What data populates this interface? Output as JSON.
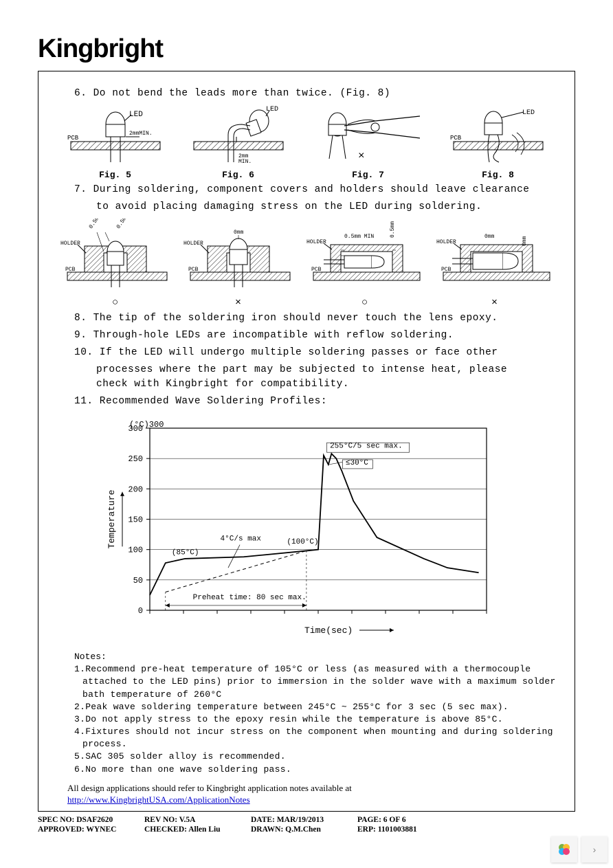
{
  "brand": "Kingbright",
  "items": {
    "i6": "6.  Do  not  bend  the  leads  more  than  twice.  (Fig.  8)",
    "i7": "7.  During  soldering,  component  covers  and  holders  should  leave  clearance",
    "i7b": "to  avoid  placing  damaging  stress  on  the  LED  during  soldering.",
    "i8": "8.  The  tip  of  the  soldering  iron  should  never  touch  the  lens  epoxy.",
    "i9": "9.  Through-hole  LEDs  are  incompatible  with  reflow  soldering.",
    "i10": "10.  If  the  LED  will  undergo  multiple  soldering  passes  or  face  other",
    "i10b": "processes  where  the  part  may  be  subjected  to  intense  heat,  please",
    "i10c": "check  with  Kingbright  for  compatibility.",
    "i11": "11.  Recommended  Wave  Soldering  Profiles:"
  },
  "figrow1": {
    "labels": [
      "Fig.  5",
      "Fig.  6",
      "Fig.  7",
      "Fig.  8"
    ],
    "captions": {
      "led": "LED",
      "pcb": "PCB",
      "min2a": "2mmMIN.",
      "min2b": "2mm",
      "minb2": "MIN."
    }
  },
  "figrow2": {
    "labels": [
      "HOLDER",
      "PCB"
    ],
    "dims": [
      "0.5mm MIN",
      "0mm",
      "0.5mm MIN",
      "0mm"
    ],
    "dimsv": [
      "0.5mm MIN",
      "0.5mm MIN",
      "0mm"
    ],
    "marks": [
      "○",
      "×",
      "○",
      "×"
    ]
  },
  "chart": {
    "title_y": "Temperature",
    "title_x": "Time(sec)",
    "yunit": "(°C)",
    "y_ticks": [
      0,
      50,
      100,
      150,
      200,
      250,
      300
    ],
    "ylim": [
      0,
      300
    ],
    "annotations": {
      "peak": "255°C/5 sec max.",
      "delta": "≤30°C",
      "ramp": "4°C/s max",
      "t85": "(85°C)",
      "t100": "(100°C)",
      "preheat": "Preheat time: 80 sec max."
    },
    "colors": {
      "line": "#000000",
      "grid": "#000000",
      "bg": "#ffffff"
    },
    "series_solid": [
      [
        0,
        25
      ],
      [
        20,
        78
      ],
      [
        45,
        85
      ],
      [
        120,
        88
      ],
      [
        200,
        98
      ],
      [
        215,
        100
      ],
      [
        222,
        255
      ],
      [
        228,
        240
      ],
      [
        232,
        258
      ],
      [
        238,
        250
      ],
      [
        245,
        230
      ],
      [
        260,
        180
      ],
      [
        290,
        120
      ],
      [
        350,
        85
      ],
      [
        380,
        70
      ],
      [
        420,
        62
      ]
    ],
    "series_dashed": [
      [
        20,
        30
      ],
      [
        200,
        98
      ]
    ]
  },
  "notes": {
    "head": "Notes:",
    "n1": "1.Recommend  pre-heat  temperature  of  105°C  or  less  (as  measured  with  a  thermocouple attached  to  the  LED  pins)  prior  to  immersion  in  the  solder  wave  with  a  maximum solder  bath  temperature  of  260°C",
    "n2": "2.Peak  wave  soldering  temperature  between  245°C  ~  255°C  for  3  sec  (5  sec  max).",
    "n3": "3.Do  not  apply  stress  to  the  epoxy  resin  while  the  temperature  is  above  85°C.",
    "n4": "4.Fixtures  should  not  incur  stress  on  the  component  when  mounting  and  during  soldering  process.",
    "n5": "5.SAC  305  solder  alloy  is  recommended.",
    "n6": "6.No  more  than  one  wave  soldering  pass."
  },
  "ref": {
    "text": "All design applications should refer to Kingbright application notes available at",
    "link": "http://www.KingbrightUSA.com/ApplicationNotes"
  },
  "footer": {
    "spec": "SPEC NO: DSAF2620",
    "rev": "REV NO: V.5A",
    "date": "DATE: MAR/19/2013",
    "page": "PAGE:  6  OF  6",
    "approved": "APPROVED: WYNEC",
    "checked": "CHECKED: Allen Liu",
    "drawn": "DRAWN: Q.M.Chen",
    "erp": "ERP: 1101003881"
  },
  "colors": {
    "text": "#000000",
    "link": "#0000cc",
    "hatch": "#000000"
  }
}
